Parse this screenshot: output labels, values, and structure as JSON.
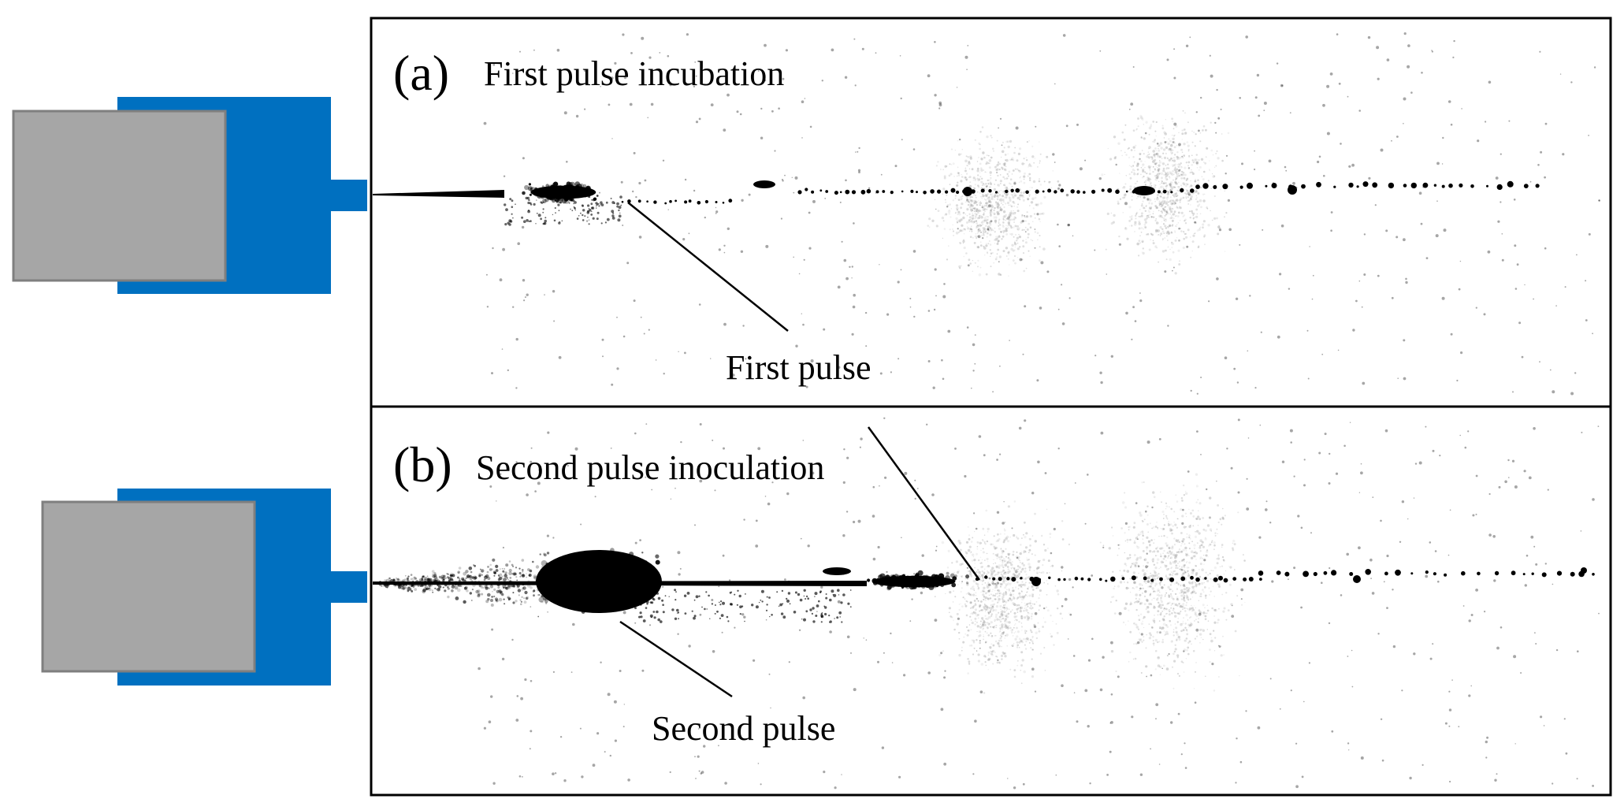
{
  "colors": {
    "injector_body": "#0070C0",
    "injector_cap": "#A6A6A6",
    "cap_border": "#7F7F7F",
    "frame": "#000000",
    "spray": "#000000"
  },
  "panels": [
    {
      "letter": "(a)",
      "title": "First pulse incubation",
      "callout": "First pulse"
    },
    {
      "letter": "(b)",
      "title": "Second pulse inoculation",
      "callout": "Second pulse"
    }
  ]
}
